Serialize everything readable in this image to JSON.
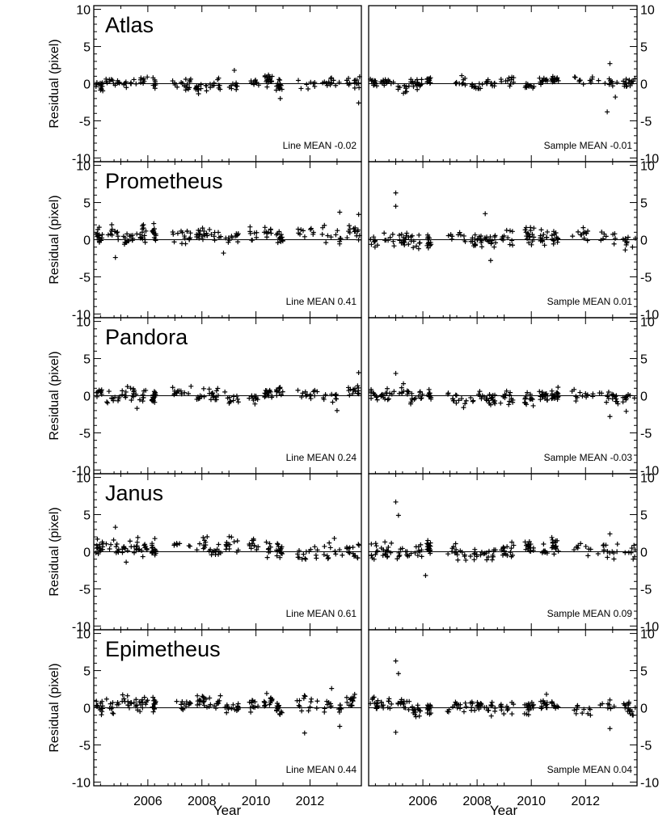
{
  "chart_data": {
    "type": "scatter",
    "xlabel": "Year",
    "ylabel": "Residual (pixel)",
    "xlim": [
      2004.0,
      2013.9
    ],
    "ylim": [
      -10.5,
      10.5
    ],
    "y_ticks": [
      10,
      5,
      0,
      -5,
      -10
    ],
    "x_ticks": [
      2006,
      2008,
      2010,
      2012
    ],
    "columns": [
      "Line",
      "Sample"
    ],
    "marker": "+",
    "reference_line_y": 0,
    "panels": [
      {
        "moon": "Atlas",
        "line_label": "Line MEAN -0.02",
        "sample_label": "Sample MEAN -0.01",
        "line_mean": -0.02,
        "sample_mean": -0.01,
        "line_spread": 0.6,
        "sample_spread": 0.5,
        "line_outliers": [
          [
            2009.2,
            1.8
          ],
          [
            2010.9,
            -2.0
          ],
          [
            2013.8,
            -2.6
          ]
        ],
        "sample_outliers": [
          [
            2012.9,
            2.7
          ],
          [
            2012.8,
            -3.8
          ],
          [
            2013.1,
            -1.8
          ]
        ]
      },
      {
        "moon": "Prometheus",
        "line_label": "Line MEAN 0.41",
        "sample_label": "Sample MEAN 0.01",
        "line_mean": 0.41,
        "sample_mean": 0.01,
        "line_spread": 0.9,
        "sample_spread": 0.9,
        "line_outliers": [
          [
            2013.8,
            3.4
          ],
          [
            2013.1,
            3.7
          ],
          [
            2004.8,
            -2.4
          ],
          [
            2008.8,
            -1.8
          ]
        ],
        "sample_outliers": [
          [
            2005.0,
            6.3
          ],
          [
            2005.0,
            4.5
          ],
          [
            2008.3,
            3.5
          ],
          [
            2008.5,
            -2.8
          ]
        ]
      },
      {
        "moon": "Pandora",
        "line_label": "Line MEAN 0.24",
        "sample_label": "Sample MEAN -0.03",
        "line_mean": 0.24,
        "sample_mean": -0.03,
        "line_spread": 0.7,
        "sample_spread": 0.8,
        "line_outliers": [
          [
            2013.8,
            3.1
          ],
          [
            2005.6,
            -1.7
          ],
          [
            2013.0,
            -2.0
          ]
        ],
        "sample_outliers": [
          [
            2005.0,
            3.0
          ],
          [
            2012.9,
            -2.8
          ],
          [
            2013.5,
            -2.1
          ]
        ]
      },
      {
        "moon": "Janus",
        "line_label": "Line MEAN 0.61",
        "sample_label": "Sample MEAN 0.09",
        "line_mean": 0.61,
        "sample_mean": 0.09,
        "line_spread": 0.9,
        "sample_spread": 0.9,
        "line_outliers": [
          [
            2004.8,
            3.3
          ],
          [
            2005.2,
            -1.4
          ],
          [
            2012.9,
            1.8
          ]
        ],
        "sample_outliers": [
          [
            2005.0,
            6.7
          ],
          [
            2005.1,
            4.9
          ],
          [
            2006.1,
            -3.2
          ],
          [
            2012.9,
            2.4
          ]
        ]
      },
      {
        "moon": "Epimetheus",
        "line_label": "Line MEAN 0.44",
        "sample_label": "Sample MEAN 0.04",
        "line_mean": 0.44,
        "sample_mean": 0.04,
        "line_spread": 0.8,
        "sample_spread": 0.8,
        "line_outliers": [
          [
            2011.8,
            -3.4
          ],
          [
            2013.1,
            -2.5
          ],
          [
            2012.8,
            2.6
          ]
        ],
        "sample_outliers": [
          [
            2005.0,
            6.3
          ],
          [
            2005.1,
            4.6
          ],
          [
            2005.0,
            -3.3
          ],
          [
            2012.9,
            -2.8
          ]
        ]
      }
    ]
  }
}
